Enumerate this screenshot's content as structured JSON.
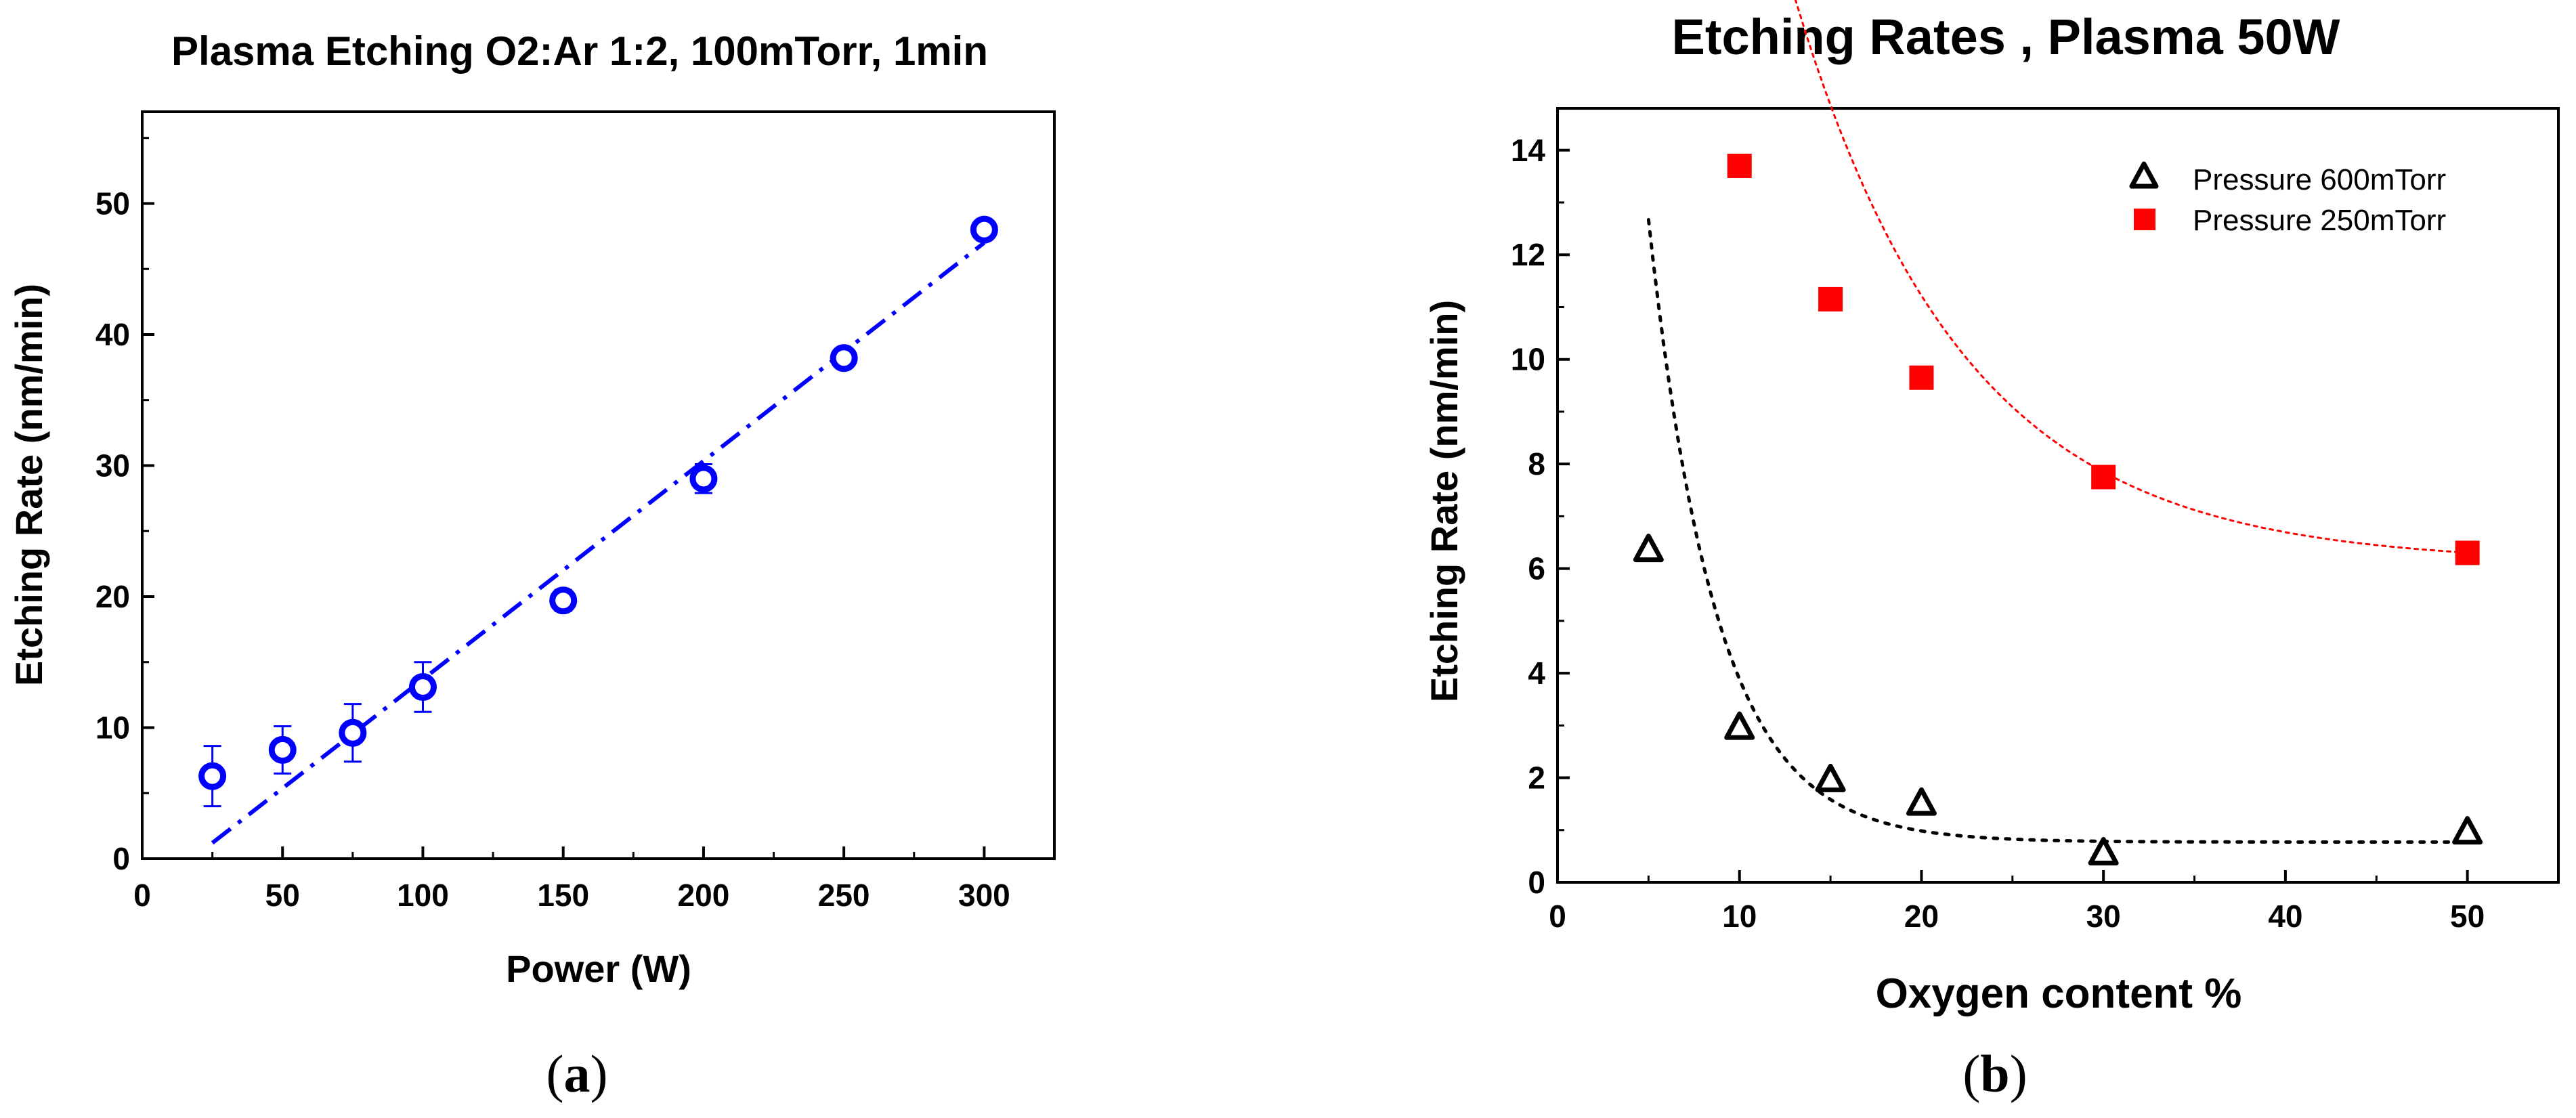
{
  "chart_data": [
    {
      "type": "scatter",
      "caption_open": "(",
      "caption": "a",
      "caption_close": ")",
      "title": "Plasma Etching O2:Ar 1:2, 100mTorr, 1min",
      "xlabel": "Power (W)",
      "ylabel": "Etching Rate (nm/min)",
      "xlim": [
        0,
        325
      ],
      "ylim": [
        0,
        57
      ],
      "xticks": [
        0,
        50,
        100,
        150,
        200,
        250,
        300
      ],
      "yticks": [
        0,
        10,
        20,
        30,
        40,
        50
      ],
      "grid": false,
      "series": [
        {
          "marker": "open-circle",
          "color": "#0000ff",
          "x": [
            25,
            50,
            75,
            100,
            150,
            200,
            250,
            300
          ],
          "y": [
            6.3,
            8.3,
            9.6,
            13.1,
            19.7,
            29.0,
            38.2,
            48.0
          ],
          "error": [
            2.3,
            1.8,
            2.2,
            1.9,
            0.8,
            1.1,
            0.5,
            0.4
          ]
        }
      ],
      "fit_line": {
        "style": "dash-dot",
        "color": "#0000ff",
        "x": [
          25,
          300
        ],
        "y": [
          1.2,
          47.0
        ]
      }
    },
    {
      "type": "scatter",
      "caption_open": "(",
      "caption": "b",
      "caption_close": ")",
      "title": "Etching Rates , Plasma 50W",
      "xlabel": "Oxygen content %",
      "ylabel": "Etching Rate (nm/min)",
      "xlim": [
        0,
        55
      ],
      "ylim": [
        0,
        14.8
      ],
      "xticks": [
        0,
        10,
        20,
        30,
        40,
        50
      ],
      "yticks": [
        0,
        2,
        4,
        6,
        8,
        10,
        12,
        14
      ],
      "grid": false,
      "legend_position": "top-right",
      "series": [
        {
          "name": "Pressure 600mTorr",
          "marker": "open-triangle",
          "color": "#000000",
          "x": [
            5,
            10,
            15,
            20,
            30,
            50
          ],
          "y": [
            6.35,
            2.95,
            1.95,
            1.5,
            0.55,
            0.95
          ],
          "fit": {
            "type": "exponential-decay",
            "y0": 0.77,
            "A": 11.9,
            "t": 3.73
          }
        },
        {
          "name": "Pressure 250mTorr",
          "marker": "filled-square",
          "color": "#ff0000",
          "x": [
            10,
            15,
            20,
            30,
            50
          ],
          "y": [
            13.7,
            11.15,
            9.65,
            7.75,
            6.3
          ],
          "fit": {
            "type": "exponential-decay",
            "y0": 6.1,
            "A": 15.0,
            "t": 9.3
          }
        }
      ]
    }
  ]
}
